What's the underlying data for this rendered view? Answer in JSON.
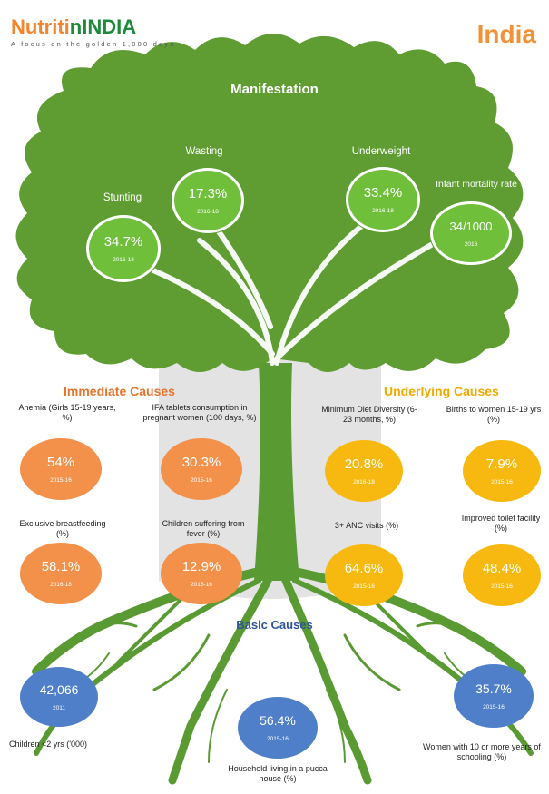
{
  "header": {
    "brand_part1": "Nutriti",
    "brand_part2": "nINDIA",
    "tagline": "A focus on the golden 1,000 days",
    "country": "India"
  },
  "sections": {
    "manifestation": "Manifestation",
    "immediate": "Immediate Causes",
    "underlying": "Underlying Causes",
    "basic": "Basic Causes"
  },
  "manifestation": [
    {
      "label": "Stunting",
      "value": "34.7%",
      "year": "2016-18"
    },
    {
      "label": "Wasting",
      "value": "17.3%",
      "year": "2016-18"
    },
    {
      "label": "Underweight",
      "value": "33.4%",
      "year": "2016-18"
    },
    {
      "label": "Infant mortality rate",
      "value": "34/1000",
      "year": "2016"
    }
  ],
  "immediate": [
    {
      "label": "Anemia (Girls 15-19 years, %)",
      "value": "54%",
      "year": "2015-16"
    },
    {
      "label": "IFA tablets consumption in pregnant women (100 days, %)",
      "value": "30.3%",
      "year": "2015-16"
    },
    {
      "label": "Exclusive breastfeeding (%)",
      "value": "58.1%",
      "year": "2016-18"
    },
    {
      "label": "Children suffering from fever (%)",
      "value": "12.9%",
      "year": "2015-16"
    }
  ],
  "underlying": [
    {
      "label": "Minimum Diet Diversity (6-23 months, %)",
      "value": "20.8%",
      "year": "2016-18"
    },
    {
      "label": "Births to women 15-19 yrs (%)",
      "value": "7.9%",
      "year": "2015-16"
    },
    {
      "label": "3+ ANC visits (%)",
      "value": "64.6%",
      "year": "2015-16"
    },
    {
      "label": "Improved toilet facility (%)",
      "value": "48.4%",
      "year": "2015-16"
    }
  ],
  "basic": [
    {
      "label": "Children <2 yrs ('000)",
      "value": "42,066",
      "year": "2011"
    },
    {
      "label": "Household living in a pucca house (%)",
      "value": "56.4%",
      "year": "2015-16"
    },
    {
      "label": "Women with 10 or more years of schooling (%)",
      "value": "35.7%",
      "year": "2015-16"
    }
  ],
  "colors": {
    "canopy": "#5f9d33",
    "trunk": "#5a9a32",
    "manifestation_bubble": "#6fbf3b",
    "immediate_bubble": "#f39049",
    "underlying_bubble": "#f7b90f",
    "basic_bubble": "#4f7fc9",
    "country": "#f39137"
  }
}
